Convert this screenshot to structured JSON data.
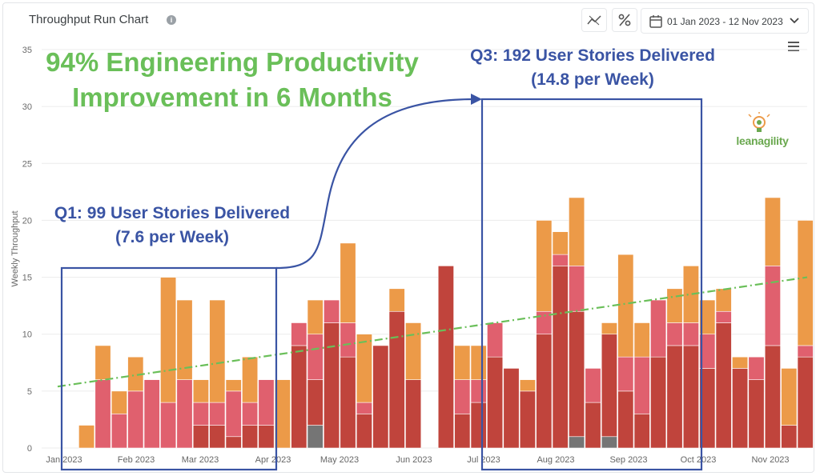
{
  "header": {
    "title": "Throughput Run Chart",
    "info_icon": "info-icon",
    "trend_toggle_icon": "trend-line-icon",
    "percent_toggle_icon": "percent-icon",
    "date_range": "01 Jan 2023 - 12 Nov 2023",
    "calendar_icon": "calendar-icon",
    "dropdown_icon": "chevron-down-icon",
    "menu_icon": "hamburger-menu-icon"
  },
  "logo": {
    "text": "leanagility",
    "icon": "lightbulb-icon"
  },
  "headline": [
    "94% Engineering Productivity",
    "Improvement in 6 Months"
  ],
  "annotations": {
    "q1": [
      "Q1: 99 User Stories Delivered",
      "(7.6 per Week)"
    ],
    "q3": [
      "Q3: 192 User Stories Delivered",
      "(14.8 per Week)"
    ]
  },
  "colors": {
    "dark_red": "#c0443c",
    "pink": "#e0606e",
    "orange": "#ec9a48",
    "gray": "#757575",
    "trend": "#6abf59",
    "annotation": "#3a54a4"
  },
  "chart_data": {
    "type": "bar",
    "stacked": true,
    "ylabel": "Weekly Throughput",
    "ylim": [
      0,
      35
    ],
    "yticks": [
      0,
      5,
      10,
      15,
      20,
      25,
      30,
      35
    ],
    "xtick_labels": [
      "Jan 2023",
      "Feb 2023",
      "Mar 2023",
      "Apr 2023",
      "May 2023",
      "Jun 2023",
      "Jul 2023",
      "Aug 2023",
      "Sep 2023",
      "Oct 2023",
      "Nov 2023"
    ],
    "grid": true,
    "series": [
      {
        "color": "#757575",
        "values": [
          0,
          0,
          0,
          0,
          0,
          0,
          0,
          0,
          0,
          0,
          0,
          0,
          0,
          0,
          0,
          2,
          0,
          0,
          0,
          0,
          0,
          0,
          0,
          0,
          0,
          0,
          0,
          0,
          0,
          0,
          0,
          1,
          0,
          1,
          0,
          0,
          0,
          0,
          0,
          0,
          0,
          0,
          0,
          0,
          0,
          0,
          0
        ]
      },
      {
        "color": "#c0443c",
        "values": [
          0,
          0,
          0,
          0,
          0,
          0,
          0,
          0,
          2,
          2,
          1,
          2,
          2,
          0,
          9,
          4,
          11,
          8,
          3,
          9,
          12,
          6,
          0,
          16,
          3,
          4,
          8,
          7,
          5,
          10,
          16,
          11,
          4,
          9,
          5,
          3,
          8,
          9,
          9,
          7,
          11,
          7,
          6,
          9,
          2,
          8,
          0
        ]
      },
      {
        "color": "#e0606e",
        "values": [
          0,
          0,
          6,
          3,
          5,
          6,
          4,
          6,
          2,
          2,
          4,
          2,
          4,
          0,
          2,
          4,
          2,
          3,
          1,
          0,
          0,
          0,
          0,
          0,
          3,
          2,
          3,
          0,
          0,
          2,
          1,
          4,
          3,
          0,
          3,
          5,
          5,
          2,
          2,
          3,
          1,
          0,
          2,
          7,
          0,
          1,
          0
        ]
      },
      {
        "color": "#ec9a48",
        "values": [
          0,
          2,
          3,
          2,
          3,
          0,
          11,
          7,
          2,
          9,
          1,
          4,
          0,
          6,
          0,
          3,
          0,
          7,
          6,
          0,
          2,
          5,
          0,
          0,
          3,
          3,
          0,
          0,
          1,
          8,
          2,
          6,
          0,
          1,
          9,
          3,
          0,
          3,
          5,
          3,
          2,
          1,
          0,
          6,
          5,
          11,
          0
        ]
      }
    ],
    "trend": {
      "style": "dash-dot",
      "start": 5.4,
      "end": 15.0
    }
  }
}
